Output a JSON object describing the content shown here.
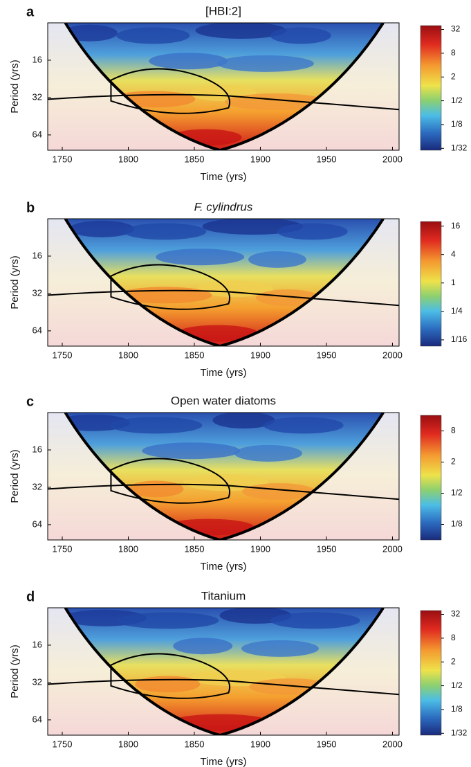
{
  "chart_data": [
    {
      "type": "wavelet",
      "panel": "a",
      "title": "[HBI:2]",
      "x_label": "Time (yrs)",
      "y_label": "Period (yrs)",
      "xlim": [
        1739,
        2005
      ],
      "xticks": [
        1750,
        1800,
        1850,
        1900,
        1950,
        2000
      ],
      "ylim": [
        8,
        85
      ],
      "yticks": [
        16,
        32,
        64
      ],
      "y_scale": "log2",
      "y_inverted": true,
      "clim": [
        0.028,
        40
      ],
      "cticks": [
        32,
        8,
        2,
        {
          "value": 0.5,
          "label": "1/2"
        },
        {
          "value": 0.125,
          "label": "1/8"
        },
        {
          "value": 0.03125,
          "label": "1/32"
        }
      ]
    },
    {
      "type": "wavelet",
      "panel": "b",
      "title": "F. cylindrus",
      "title_style": "italic",
      "x_label": "Time (yrs)",
      "y_label": "Period (yrs)",
      "xlim": [
        1739,
        2005
      ],
      "xticks": [
        1750,
        1800,
        1850,
        1900,
        1950,
        2000
      ],
      "ylim": [
        8,
        85
      ],
      "yticks": [
        16,
        32,
        64
      ],
      "y_scale": "log2",
      "y_inverted": true,
      "clim": [
        0.046,
        20
      ],
      "cticks": [
        16,
        4,
        1,
        {
          "value": 0.25,
          "label": "1/4"
        },
        {
          "value": 0.0625,
          "label": "1/16"
        }
      ]
    },
    {
      "type": "wavelet",
      "panel": "c",
      "title": "Open water diatoms",
      "x_label": "Time (yrs)",
      "y_label": "Period (yrs)",
      "xlim": [
        1739,
        2005
      ],
      "xticks": [
        1750,
        1800,
        1850,
        1900,
        1950,
        2000
      ],
      "ylim": [
        8,
        85
      ],
      "yticks": [
        16,
        32,
        64
      ],
      "y_scale": "log2",
      "y_inverted": true,
      "clim": [
        0.0625,
        16
      ],
      "cticks": [
        8,
        2,
        {
          "value": 0.5,
          "label": "1/2"
        },
        {
          "value": 0.125,
          "label": "1/8"
        }
      ]
    },
    {
      "type": "wavelet",
      "panel": "d",
      "title": "Titanium",
      "x_label": "Time (yrs)",
      "y_label": "Period (yrs)",
      "xlim": [
        1739,
        2005
      ],
      "xticks": [
        1750,
        1800,
        1850,
        1900,
        1950,
        2000
      ],
      "ylim": [
        8,
        85
      ],
      "yticks": [
        16,
        32,
        64
      ],
      "y_scale": "log2",
      "y_inverted": true,
      "clim": [
        0.028,
        40
      ],
      "cticks": [
        32,
        8,
        2,
        {
          "value": 0.5,
          "label": "1/2"
        },
        {
          "value": 0.125,
          "label": "1/8"
        },
        {
          "value": 0.03125,
          "label": "1/32"
        }
      ]
    }
  ]
}
